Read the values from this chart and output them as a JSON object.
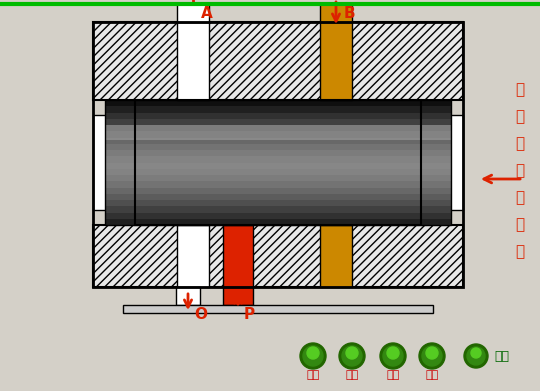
{
  "bg_color": "#d4d0c8",
  "green_line_color": "#00bb00",
  "red_fluid": "#dd2200",
  "gold_fluid": "#cc8800",
  "spool_dark": "#111111",
  "spool_mid": "#444444",
  "spool_light": "#888888",
  "hatch_bg": "#e8e8e8",
  "white": "#ffffff",
  "black": "#000000",
  "arrow_color": "#dd2200",
  "text_color": "#dd2200",
  "label_A": "A",
  "label_B": "B",
  "label_O": "O",
  "label_P": "P",
  "button_labels": [
    "左位",
    "中位",
    "右位",
    "停止"
  ],
  "return_label": "返回",
  "btn_green_dark": "#226600",
  "btn_green_mid": "#338811",
  "btn_green_light": "#55cc22",
  "btn_text_color": "#cc0000",
  "return_text_color": "#006600",
  "vert_label": [
    "三",
    "位",
    "四",
    "通",
    "換",
    "向",
    "阀"
  ]
}
